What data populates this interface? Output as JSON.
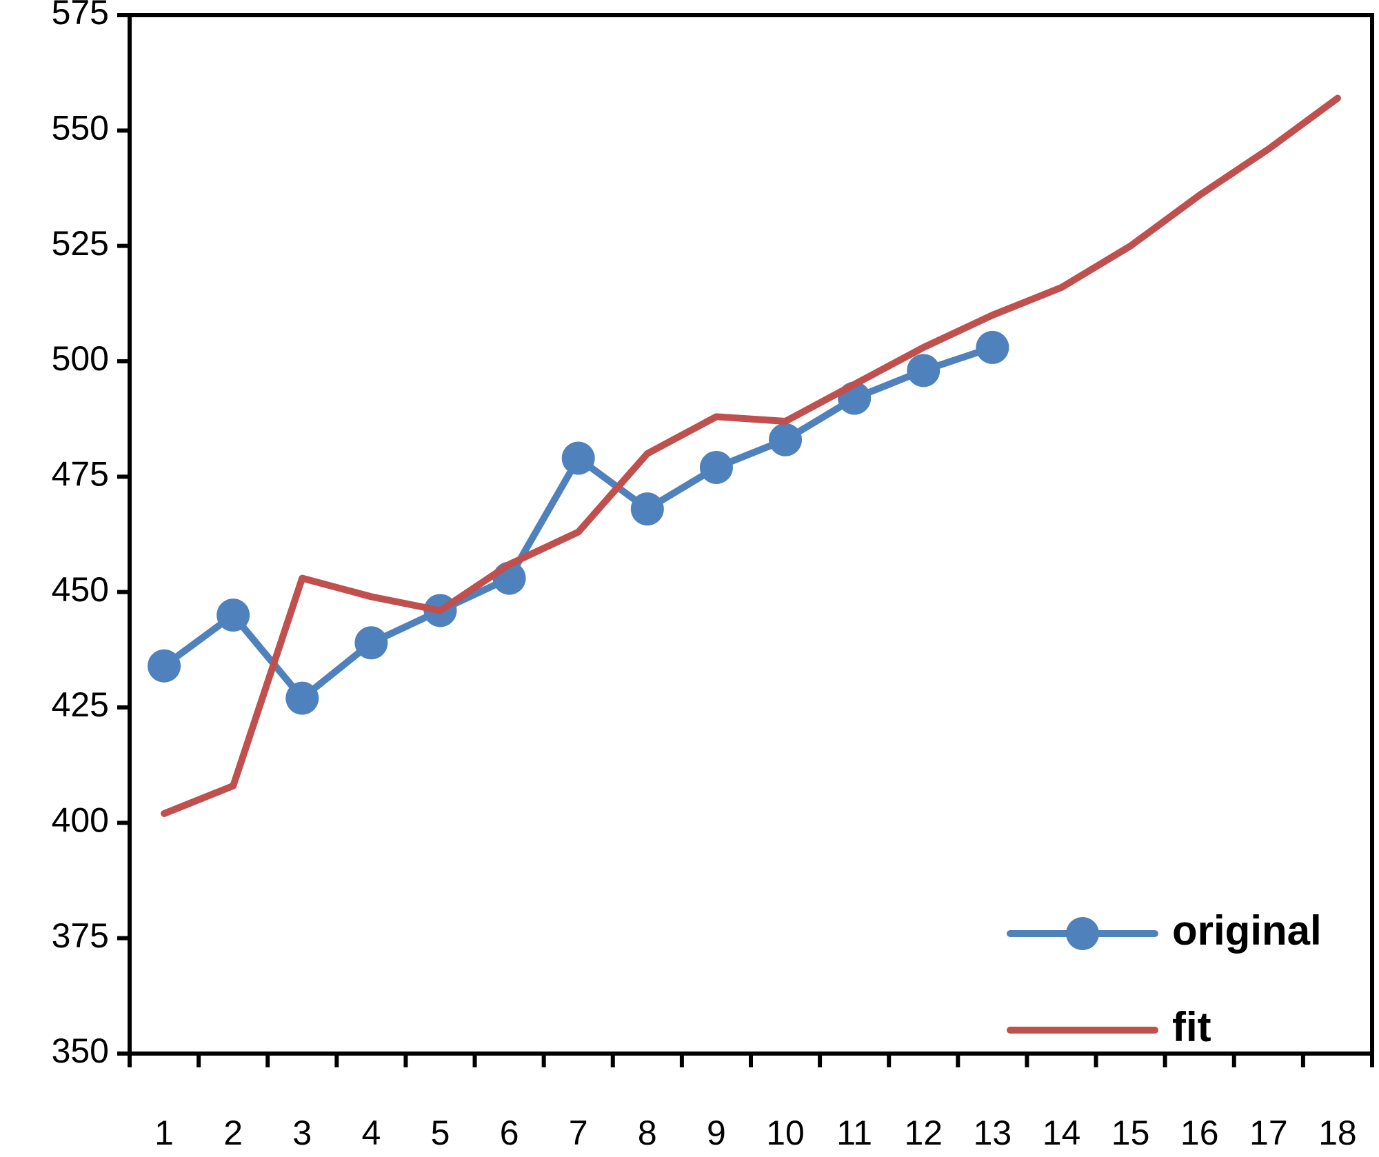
{
  "chart_data": {
    "type": "line",
    "title": "",
    "xlabel": "",
    "ylabel": "",
    "x_categories": [
      "1",
      "2",
      "3",
      "4",
      "5",
      "6",
      "7",
      "8",
      "9",
      "10",
      "11",
      "12",
      "13",
      "14",
      "15",
      "16",
      "17",
      "18"
    ],
    "y_ticks": [
      350,
      375,
      400,
      425,
      450,
      475,
      500,
      525,
      550,
      575
    ],
    "ylim": [
      350,
      575
    ],
    "grid": false,
    "legend_position": "bottom-right",
    "series": [
      {
        "name": "original",
        "color": "#4F81BD",
        "marker": "circle",
        "x": [
          1,
          2,
          3,
          4,
          5,
          6,
          7,
          8,
          9,
          10,
          11,
          12,
          13
        ],
        "values": [
          434,
          445,
          427,
          439,
          446,
          453,
          479,
          468,
          477,
          483,
          492,
          498,
          503
        ]
      },
      {
        "name": "fit",
        "color": "#C0504D",
        "marker": "none",
        "x": [
          1,
          2,
          3,
          4,
          5,
          6,
          7,
          8,
          9,
          10,
          11,
          12,
          13,
          14,
          15,
          16,
          17,
          18
        ],
        "values": [
          402,
          408,
          453,
          449,
          446,
          456,
          463,
          480,
          488,
          487,
          495,
          503,
          510,
          516,
          525,
          536,
          546,
          557
        ]
      }
    ]
  }
}
